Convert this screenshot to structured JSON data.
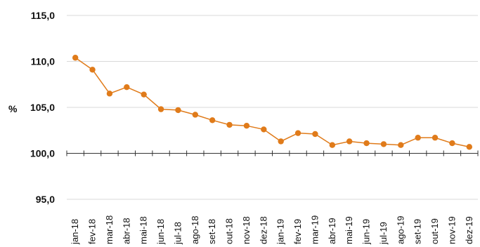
{
  "chart_data": {
    "type": "line",
    "ylabel": "%",
    "ylim": [
      95,
      115
    ],
    "yticks": [
      "115,0",
      "110,0",
      "105,0",
      "100,0",
      "95,0"
    ],
    "ytick_values": [
      115,
      110,
      105,
      100,
      95
    ],
    "baseline": 100,
    "grid": true,
    "color": "#E07B1A",
    "categories": [
      "jan-18",
      "fev-18",
      "mar-18",
      "abr-18",
      "mai-18",
      "jun-18",
      "jul-18",
      "ago-18",
      "set-18",
      "out-18",
      "nov-18",
      "dez-18",
      "jan-19",
      "fev-19",
      "mar-19",
      "abr-19",
      "mai-19",
      "jun-19",
      "jul-19",
      "ago-19",
      "set-19",
      "out-19",
      "nov-19",
      "dez-19"
    ],
    "values": [
      110.4,
      109.1,
      106.5,
      107.2,
      106.4,
      104.8,
      104.7,
      104.2,
      103.6,
      103.1,
      103.0,
      102.6,
      101.3,
      102.2,
      102.1,
      100.9,
      101.3,
      101.1,
      101.0,
      100.9,
      101.7,
      101.7,
      101.1,
      100.7
    ]
  }
}
